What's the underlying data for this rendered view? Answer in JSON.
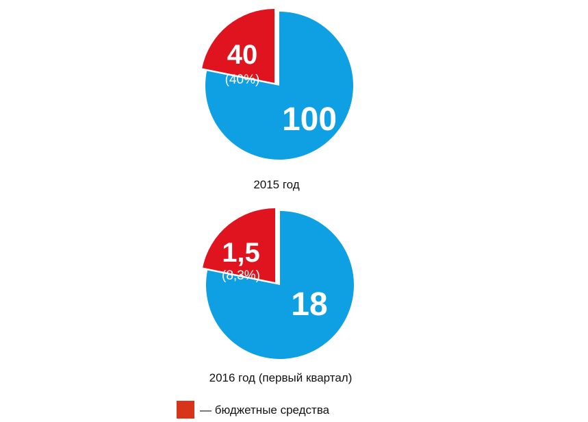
{
  "chart_data": [
    {
      "type": "pie",
      "caption": "2015 год",
      "slices": [
        {
          "value": 100,
          "label": "100",
          "color": "#0ea0e2",
          "exploded": false
        },
        {
          "value": 40,
          "label": "40",
          "percent_label": "(40%)",
          "color": "#e0141f",
          "exploded": true,
          "legend_ref": 0
        }
      ]
    },
    {
      "type": "pie",
      "caption": "2016 год (первый квартал)",
      "slices": [
        {
          "value": 18,
          "label": "18",
          "color": "#0ea0e2",
          "exploded": false
        },
        {
          "value": 1.5,
          "label": "1,5",
          "percent_label": "(8,3%)",
          "color": "#e0141f",
          "exploded": true,
          "legend_ref": 0
        }
      ]
    }
  ],
  "legend": [
    {
      "label": "— бюджетные средства",
      "color": "#d8341c"
    }
  ]
}
